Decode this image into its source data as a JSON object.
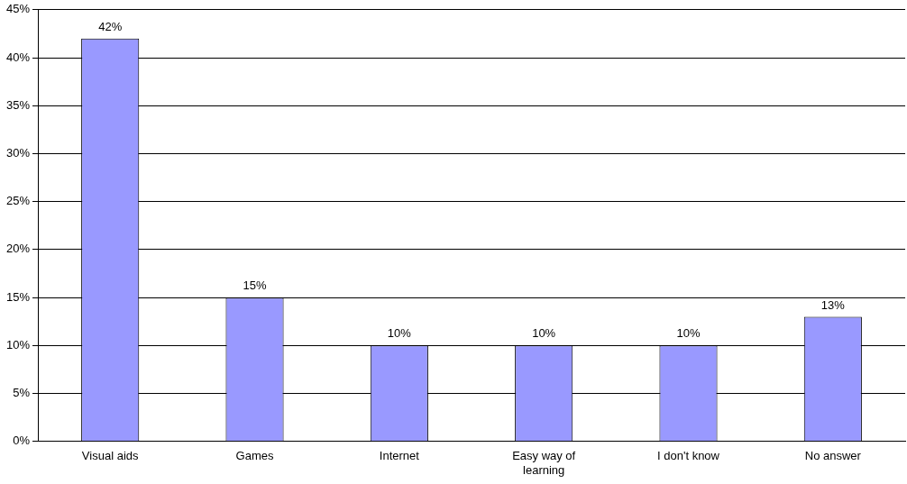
{
  "chart_data": {
    "type": "bar",
    "categories": [
      "Visual aids",
      "Games",
      "Internet",
      "Easy way of learning",
      "I don't know",
      "No answer"
    ],
    "values": [
      42,
      15,
      10,
      10,
      10,
      13
    ],
    "value_labels": [
      "42%",
      "15%",
      "10%",
      "10%",
      "10%",
      "13%"
    ],
    "color": "#9999ff",
    "ylim": [
      0,
      45
    ],
    "yticks": [
      {
        "value": 0,
        "label": "0%"
      },
      {
        "value": 5,
        "label": "5%"
      },
      {
        "value": 10,
        "label": "10%"
      },
      {
        "value": 15,
        "label": "15%"
      },
      {
        "value": 20,
        "label": "20%"
      },
      {
        "value": 25,
        "label": "25%"
      },
      {
        "value": 30,
        "label": "30%"
      },
      {
        "value": 35,
        "label": "35%"
      },
      {
        "value": 40,
        "label": "40%"
      },
      {
        "value": 45,
        "label": "45%"
      }
    ],
    "grid": "y",
    "legend": false
  }
}
